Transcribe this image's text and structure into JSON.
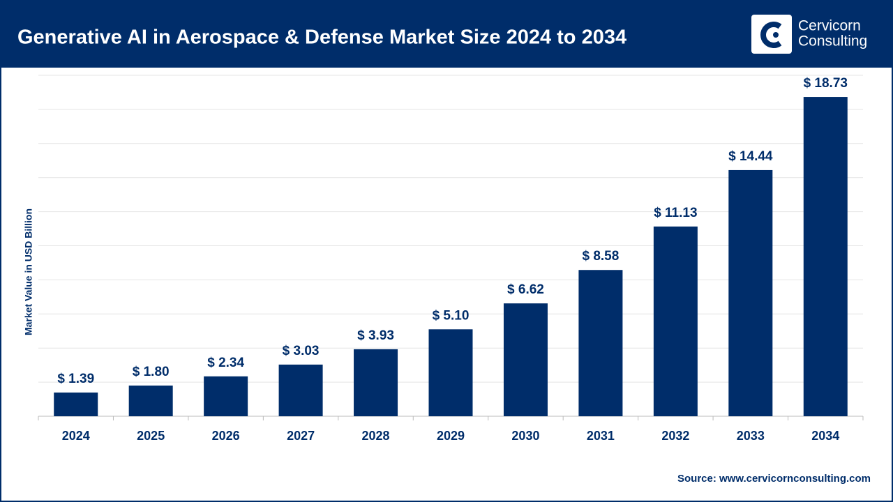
{
  "chart_data": {
    "type": "bar",
    "title": "Generative AI in Aerospace & Defense Market Size 2024 to 2034",
    "y_label": "Market Value in USD Billion",
    "categories": [
      "2024",
      "2025",
      "2026",
      "2027",
      "2028",
      "2029",
      "2030",
      "2031",
      "2032",
      "2033",
      "2034"
    ],
    "values": [
      1.39,
      1.8,
      2.34,
      3.03,
      3.93,
      5.1,
      6.62,
      8.58,
      11.13,
      14.44,
      18.73
    ],
    "value_labels": [
      "$ 1.39",
      "$ 1.80",
      "$ 2.34",
      "$ 3.03",
      "$ 3.93",
      "$ 5.10",
      "$ 6.62",
      "$ 8.58",
      "$ 11.13",
      "$ 14.44",
      "$ 18.73"
    ],
    "color": "#002d6a",
    "ylim": [
      0,
      20
    ],
    "yticks": [
      0,
      2,
      4,
      6,
      8,
      10,
      12,
      14,
      16,
      18,
      20
    ],
    "grid": true
  },
  "source": "Source: www.cervicornconsulting.com",
  "logo": {
    "line1": "Cervicorn",
    "line2": "Consulting"
  }
}
